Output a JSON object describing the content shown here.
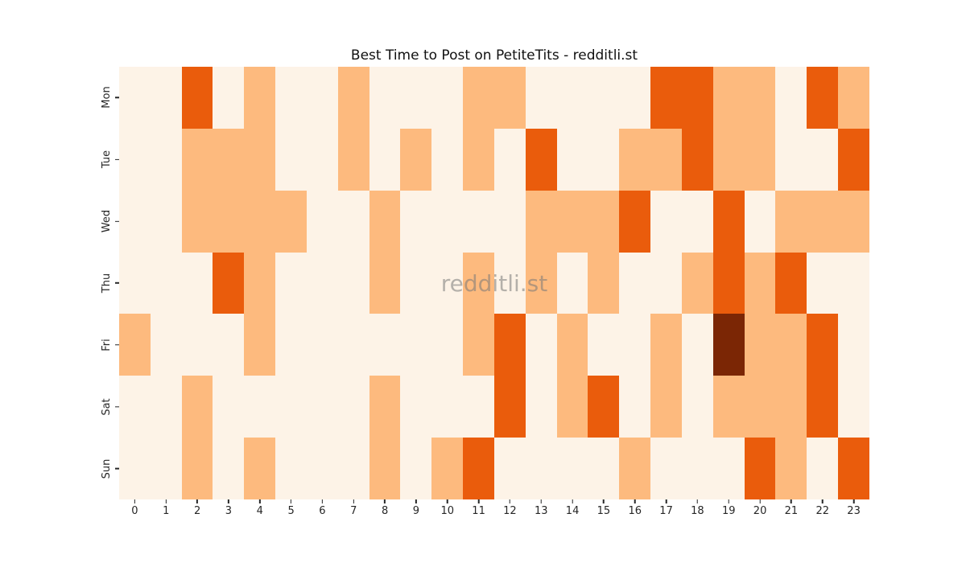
{
  "title": "Best Time to Post on PetiteTits - redditli.st",
  "watermark": "redditli.st",
  "chart_data": {
    "type": "heatmap",
    "title": "Best Time to Post on PetiteTits - redditli.st",
    "xlabel": "",
    "ylabel": "",
    "x_labels": [
      "0",
      "1",
      "2",
      "3",
      "4",
      "5",
      "6",
      "7",
      "8",
      "9",
      "10",
      "11",
      "12",
      "13",
      "14",
      "15",
      "16",
      "17",
      "18",
      "19",
      "20",
      "21",
      "22",
      "23"
    ],
    "y_labels": [
      "Mon",
      "Tue",
      "Wed",
      "Thu",
      "Fri",
      "Sat",
      "Sun"
    ],
    "colormap": "Oranges",
    "value_scale": "relative posting-activity intensity, 0 (lowest) to 3 (highest)",
    "palette": [
      "#fdf3e7",
      "#fdba7e",
      "#ea5c0c",
      "#7b2605"
    ],
    "grid": false,
    "legend": false,
    "values": [
      [
        0,
        0,
        2,
        0,
        1,
        0,
        0,
        1,
        0,
        0,
        0,
        1,
        1,
        0,
        0,
        0,
        0,
        2,
        2,
        1,
        1,
        0,
        2,
        1
      ],
      [
        0,
        0,
        1,
        1,
        1,
        0,
        0,
        1,
        0,
        1,
        0,
        1,
        0,
        2,
        0,
        0,
        1,
        1,
        2,
        1,
        1,
        0,
        0,
        2
      ],
      [
        0,
        0,
        1,
        1,
        1,
        1,
        0,
        0,
        1,
        0,
        0,
        0,
        0,
        1,
        1,
        1,
        2,
        0,
        0,
        2,
        0,
        1,
        1,
        1
      ],
      [
        0,
        0,
        0,
        2,
        1,
        0,
        0,
        0,
        1,
        0,
        0,
        1,
        0,
        1,
        0,
        1,
        0,
        0,
        1,
        2,
        1,
        2,
        0,
        0
      ],
      [
        1,
        0,
        0,
        0,
        1,
        0,
        0,
        0,
        0,
        0,
        0,
        1,
        2,
        0,
        1,
        0,
        0,
        1,
        0,
        3,
        1,
        1,
        2,
        0
      ],
      [
        0,
        0,
        1,
        0,
        0,
        0,
        0,
        0,
        1,
        0,
        0,
        0,
        2,
        0,
        1,
        2,
        0,
        1,
        0,
        1,
        1,
        1,
        2,
        0
      ],
      [
        0,
        0,
        1,
        0,
        1,
        0,
        0,
        0,
        1,
        0,
        1,
        2,
        0,
        0,
        0,
        0,
        1,
        0,
        0,
        0,
        2,
        1,
        0,
        2
      ]
    ]
  }
}
